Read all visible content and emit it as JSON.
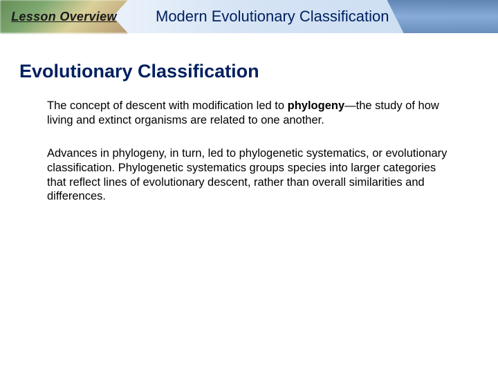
{
  "header": {
    "left_label": "Lesson Overview",
    "title": "Modern Evolutionary Classification"
  },
  "section": {
    "title": "Evolutionary Classification",
    "para1_a": "The concept of descent with modification led to ",
    "para1_b": "phylogeny",
    "para1_c": "—the study of how living and extinct organisms are related to one another.",
    "para2": "Advances in phylogeny, in turn, led to phylogenetic systematics, or evolutionary classification. Phylogenetic systematics groups species into larger categories that reflect lines of evolutionary descent, rather than overall similarities and differences."
  },
  "colors": {
    "title_color": "#002060",
    "body_color": "#000000",
    "header_bg_start": "#e8f0fa",
    "header_bg_end": "#c8dcf0"
  }
}
